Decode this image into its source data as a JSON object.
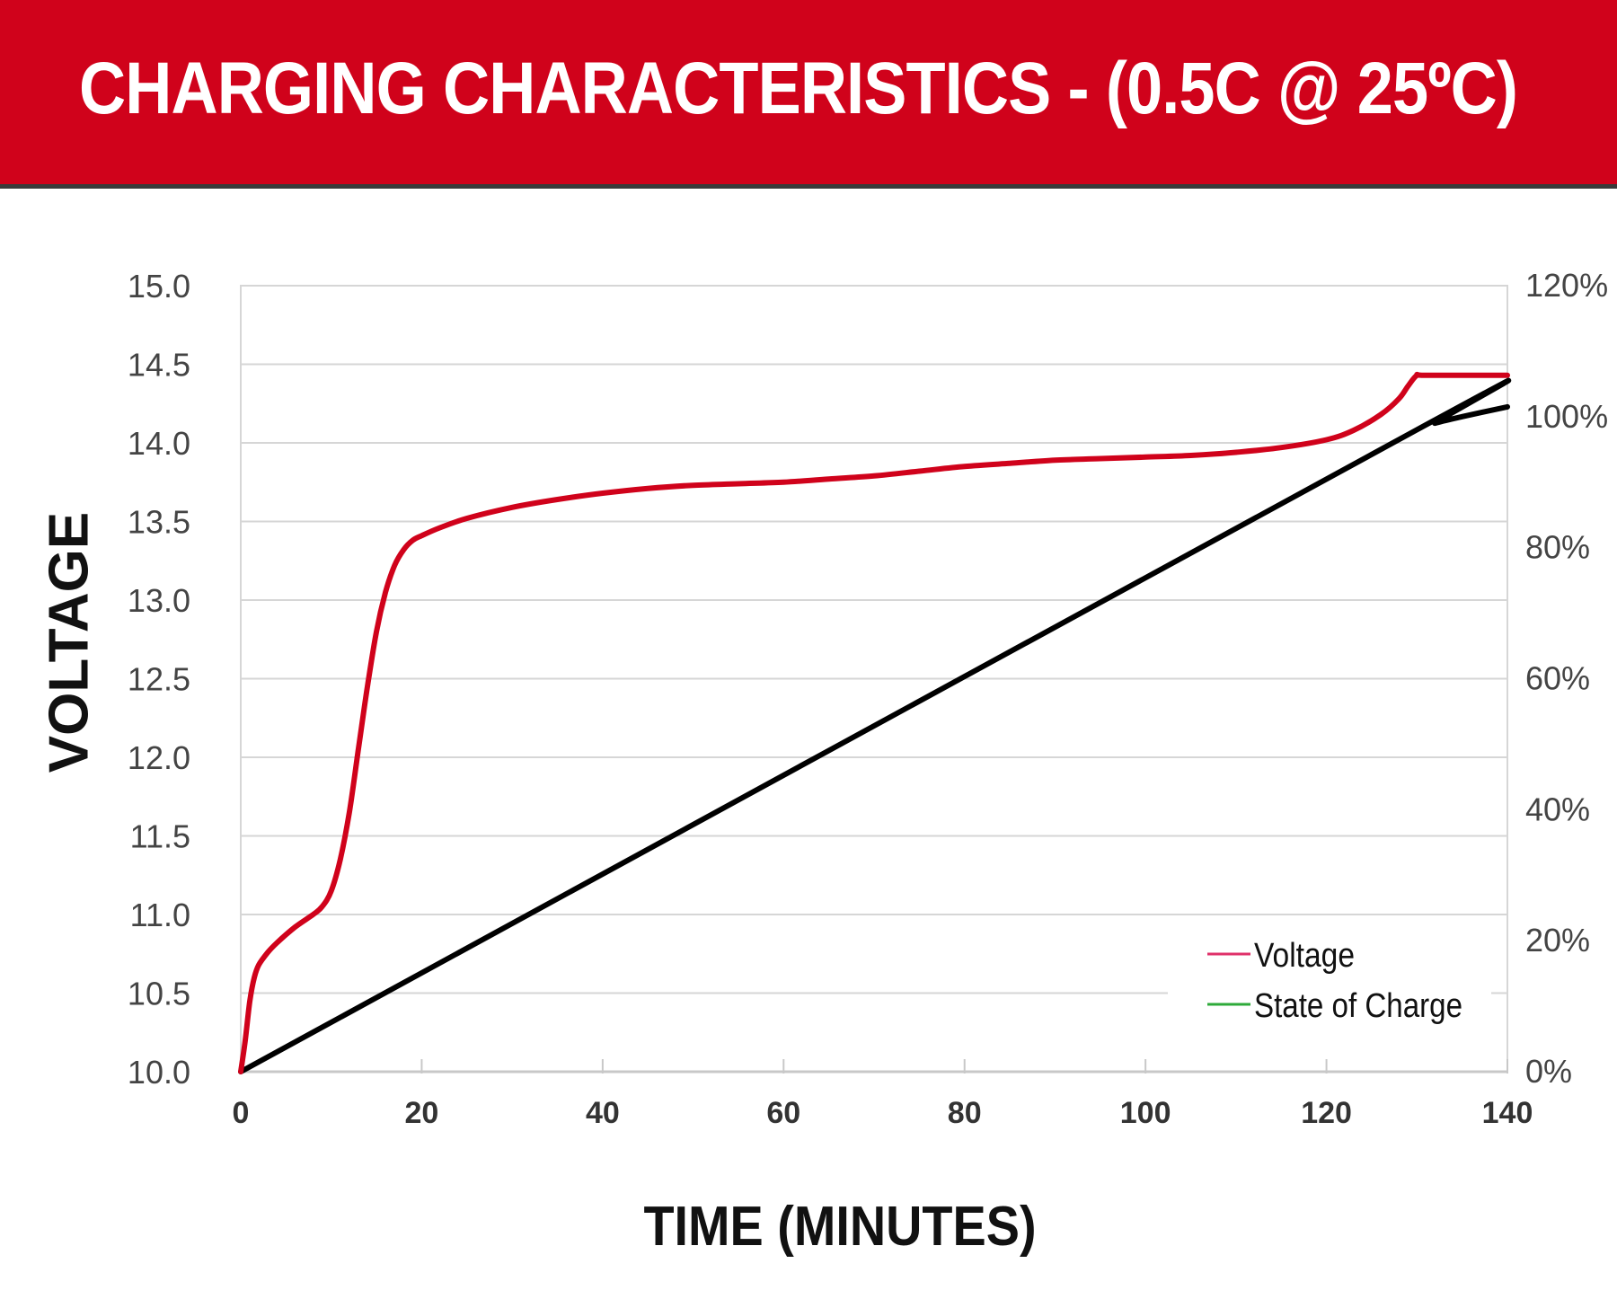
{
  "title": "CHARGING CHARACTERISTICS - (0.5C @ 25ºC)",
  "chart_data": {
    "type": "line",
    "title": "CHARGING CHARACTERISTICS - (0.5C @ 25ºC)",
    "xlabel": "TIME (MINUTES)",
    "ylabel": "VOLTAGE",
    "xlim": [
      0,
      140
    ],
    "ylim": [
      10.0,
      15.0
    ],
    "y2lim": [
      0,
      120
    ],
    "x_ticks": [
      "0",
      "20",
      "40",
      "60",
      "80",
      "100",
      "120",
      "140"
    ],
    "y_ticks": [
      "10.0",
      "10.5",
      "11.0",
      "11.5",
      "12.0",
      "12.5",
      "13.0",
      "13.5",
      "14.0",
      "14.5",
      "15.0"
    ],
    "y2_ticks": [
      "0%",
      "20%",
      "40%",
      "60%",
      "80%",
      "100%",
      "120%"
    ],
    "grid": true,
    "legend_position": "bottom-right",
    "series": [
      {
        "name": "Voltage",
        "axis": "left",
        "color": "#d0021b",
        "legend_color": "#e0306a",
        "x": [
          0,
          0.5,
          1,
          1.5,
          2,
          3,
          4,
          6,
          8,
          9,
          10,
          11,
          12,
          13,
          14,
          15,
          16,
          17,
          18,
          19,
          20,
          22,
          25,
          30,
          35,
          40,
          45,
          50,
          55,
          60,
          65,
          70,
          75,
          80,
          85,
          90,
          95,
          100,
          105,
          110,
          115,
          120,
          123,
          126,
          128,
          129,
          130,
          131,
          140
        ],
        "values": [
          10.0,
          10.2,
          10.45,
          10.6,
          10.68,
          10.76,
          10.82,
          10.92,
          11.0,
          11.05,
          11.15,
          11.35,
          11.65,
          12.05,
          12.45,
          12.8,
          13.05,
          13.22,
          13.32,
          13.38,
          13.41,
          13.46,
          13.52,
          13.59,
          13.64,
          13.68,
          13.71,
          13.73,
          13.74,
          13.75,
          13.77,
          13.79,
          13.82,
          13.85,
          13.87,
          13.89,
          13.9,
          13.91,
          13.92,
          13.94,
          13.97,
          14.02,
          14.08,
          14.18,
          14.28,
          14.36,
          14.43,
          14.43,
          14.43
        ]
      },
      {
        "name": "State of Charge",
        "axis": "right",
        "color": "#000000",
        "legend_color": "#2eaa3a",
        "unit": "%",
        "x": [
          0,
          130,
          132,
          135,
          140
        ],
        "values": [
          0,
          98,
          99,
          100,
          101.5
        ]
      }
    ]
  }
}
